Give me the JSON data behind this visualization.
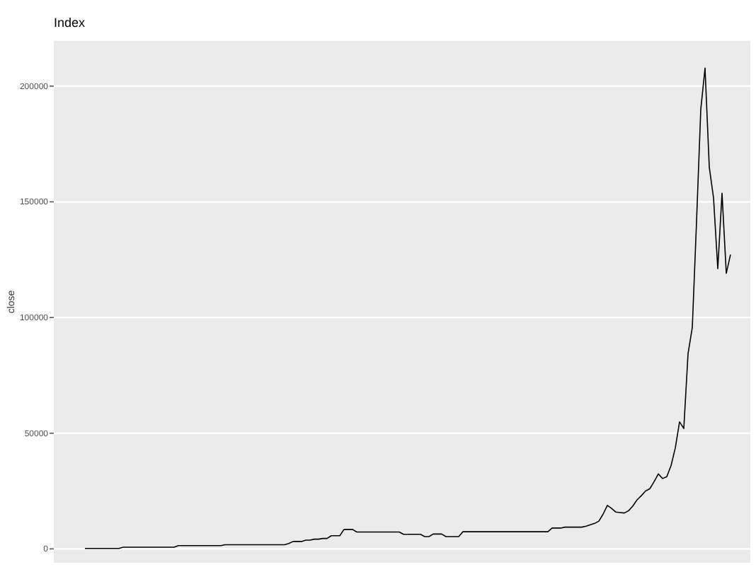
{
  "chart_data": {
    "type": "line",
    "title": "Index",
    "ylabel": "close",
    "grid": "y",
    "ylim": [
      -6000,
      219500
    ],
    "yticks": [
      0,
      50000,
      100000,
      150000,
      200000
    ],
    "categories": [
      null,
      null,
      null,
      null,
      null,
      null,
      null,
      null,
      null,
      null,
      null,
      null,
      null,
      null,
      null,
      null,
      null,
      null,
      null,
      null,
      null,
      null,
      null,
      null,
      null,
      null,
      null,
      null,
      null,
      null,
      null,
      null,
      null,
      null,
      null,
      null,
      null,
      null,
      null,
      null,
      null,
      null,
      null,
      null,
      null,
      null,
      null,
      null,
      null,
      null,
      null,
      null,
      null,
      null,
      null,
      null,
      null,
      null,
      null,
      null,
      null,
      null,
      null,
      null,
      null,
      null,
      null,
      null,
      null,
      null,
      null,
      null,
      null,
      null,
      null,
      null,
      null,
      null,
      null,
      null,
      null,
      null,
      null,
      null,
      null,
      null,
      null,
      null,
      null,
      null,
      null,
      null,
      null,
      null,
      null,
      null,
      null,
      null,
      null,
      null,
      null,
      null,
      null,
      null,
      null,
      null,
      null,
      null,
      null,
      null,
      null,
      null,
      null,
      null,
      null,
      null,
      null,
      null,
      null,
      null,
      null,
      null,
      null,
      null,
      null,
      null,
      null,
      null,
      null,
      null,
      null,
      null,
      null,
      null,
      null,
      null,
      null,
      null,
      null,
      null,
      null,
      null,
      null,
      null,
      null,
      null,
      null,
      null,
      null,
      null,
      null,
      null,
      null
    ],
    "series": [
      {
        "color": "#000000",
        "values": [
          200,
          200,
          200,
          200,
          200,
          200,
          200,
          200,
          200,
          700,
          700,
          700,
          700,
          700,
          700,
          700,
          700,
          700,
          700,
          700,
          700,
          700,
          1400,
          1400,
          1400,
          1400,
          1400,
          1400,
          1400,
          1400,
          1400,
          1400,
          1400,
          1800,
          1800,
          1800,
          1800,
          1800,
          1800,
          1800,
          1800,
          1800,
          1800,
          1800,
          1800,
          1800,
          1800,
          1800,
          2300,
          3200,
          3200,
          3200,
          3800,
          3800,
          4200,
          4200,
          4500,
          4500,
          5700,
          5700,
          5700,
          8400,
          8400,
          8400,
          7300,
          7300,
          7300,
          7300,
          7300,
          7300,
          7300,
          7300,
          7300,
          7300,
          7300,
          6300,
          6300,
          6300,
          6300,
          6300,
          5300,
          5300,
          6400,
          6400,
          6400,
          5300,
          5300,
          5300,
          5300,
          7400,
          7400,
          7400,
          7400,
          7400,
          7400,
          7400,
          7400,
          7400,
          7400,
          7400,
          7400,
          7400,
          7400,
          7400,
          7400,
          7400,
          7400,
          7400,
          7400,
          7400,
          9000,
          9000,
          9000,
          9400,
          9400,
          9400,
          9400,
          9400,
          9800,
          10400,
          11000,
          12000,
          15000,
          18800,
          17500,
          15900,
          15700,
          15500,
          16500,
          18500,
          21200,
          23000,
          25000,
          26000,
          29000,
          32400,
          30400,
          31200,
          36000,
          43600,
          54900,
          52000,
          84400,
          95600,
          141500,
          190000,
          207800,
          165000,
          151700,
          121100,
          153700,
          119100,
          127200
        ]
      }
    ]
  }
}
